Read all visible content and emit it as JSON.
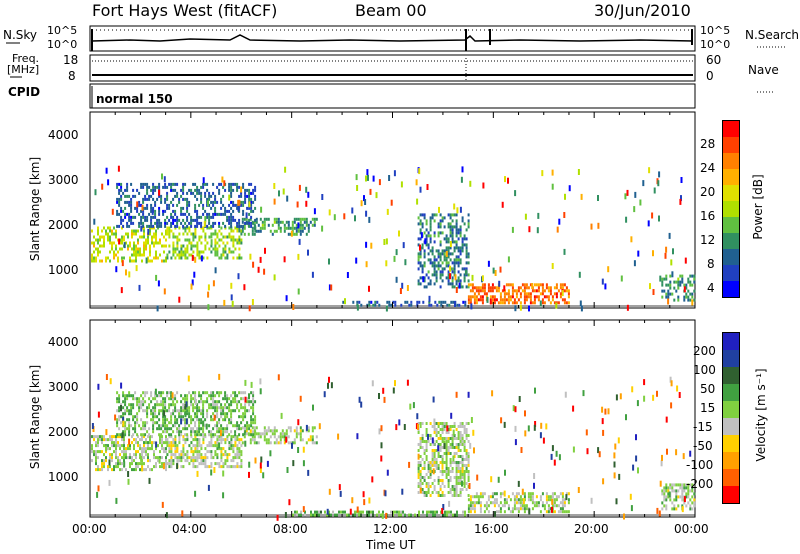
{
  "header": {
    "station": "Fort Hays West (fitACF)",
    "beam": "Beam 00",
    "date": "30/Jun/2010"
  },
  "top_panels": {
    "nsky_label": "N.Sky",
    "nsearch_label": "N.Search",
    "noise_ticks": [
      "10^5",
      "10^0"
    ],
    "noise_right_ticks": [
      "10^5",
      "10^0"
    ],
    "freq_label": "Freq.",
    "freq_unit": "[MHz]",
    "freq_ticks": [
      "18",
      "8"
    ],
    "nave_label": "Nave",
    "nave_ticks": [
      "60",
      "0"
    ],
    "cpid_label": "CPID",
    "cpid_value": "normal 150"
  },
  "axes": {
    "ylabel": "Slant Range [km]",
    "xlabel": "Time UT",
    "y_ticks": [
      "4000",
      "3000",
      "2000",
      "1000"
    ],
    "x_ticks": [
      "00:00",
      "04:00",
      "08:00",
      "12:00",
      "16:00",
      "20:00",
      "00:00"
    ]
  },
  "colorbars": {
    "power": {
      "label": "Power [dB]",
      "ticks": [
        "28",
        "24",
        "20",
        "16",
        "12",
        "8",
        "4"
      ],
      "colors": [
        "#ff0000",
        "#ff4000",
        "#ff8000",
        "#ffb000",
        "#e0e000",
        "#b0e000",
        "#60c040",
        "#309060",
        "#206090",
        "#2040c0",
        "#0000ff"
      ]
    },
    "velocity": {
      "label": "Velocity [m s⁻¹]",
      "ticks": [
        "200",
        "100",
        "50",
        "15",
        "-15",
        "-50",
        "-100",
        "-200"
      ],
      "colors": [
        "#2020c0",
        "#2040a0",
        "#306030",
        "#40a040",
        "#80d040",
        "#c0c0c0",
        "#ffd000",
        "#ffa000",
        "#ff6000",
        "#ff0000"
      ]
    }
  },
  "chart_data": [
    {
      "type": "heatmap",
      "title": "Power",
      "xlabel": "Time UT",
      "ylabel": "Slant Range [km]",
      "xlim": [
        "00:00",
        "24:00"
      ],
      "ylim": [
        180,
        4600
      ],
      "colorbar_label": "Power [dB]",
      "colorbar_range": [
        0,
        30
      ],
      "regions": [
        {
          "t0": 0.0,
          "t1": 3.0,
          "r0": 1200,
          "r1": 2000,
          "value": 16
        },
        {
          "t0": 3.0,
          "t1": 6.0,
          "r0": 1300,
          "r1": 2000,
          "value": 14
        },
        {
          "t0": 6.0,
          "t1": 9.0,
          "r0": 1800,
          "r1": 2200,
          "value": 10
        },
        {
          "t0": 1.0,
          "t1": 6.5,
          "r0": 2000,
          "r1": 3000,
          "value": 6
        },
        {
          "t0": 13.0,
          "t1": 15.0,
          "r0": 600,
          "r1": 2300,
          "value": 8
        },
        {
          "t0": 15.0,
          "t1": 19.0,
          "r0": 250,
          "r1": 700,
          "value": 24
        },
        {
          "t0": 22.7,
          "t1": 24.0,
          "r0": 300,
          "r1": 900,
          "value": 10
        },
        {
          "t0": 10.0,
          "t1": 15.0,
          "r0": 200,
          "r1": 300,
          "value": 6
        }
      ]
    },
    {
      "type": "heatmap",
      "title": "Velocity",
      "xlabel": "Time UT",
      "ylabel": "Slant Range [km]",
      "xlim": [
        "00:00",
        "24:00"
      ],
      "ylim": [
        180,
        4600
      ],
      "colorbar_label": "Velocity [m s⁻¹]",
      "colorbar_range": [
        -200,
        200
      ],
      "regions": [
        {
          "t0": 0.0,
          "t1": 3.0,
          "r0": 1200,
          "r1": 2000,
          "value": 0
        },
        {
          "t0": 3.0,
          "t1": 6.0,
          "r0": 1300,
          "r1": 2000,
          "value": 0
        },
        {
          "t0": 6.0,
          "t1": 9.0,
          "r0": 1800,
          "r1": 2200,
          "value": 0
        },
        {
          "t0": 1.0,
          "t1": 6.5,
          "r0": 2000,
          "r1": 3000,
          "value": 30
        },
        {
          "t0": 13.0,
          "t1": 15.0,
          "r0": 600,
          "r1": 2300,
          "value": 0
        },
        {
          "t0": 15.0,
          "t1": 19.0,
          "r0": 250,
          "r1": 700,
          "value": 0
        },
        {
          "t0": 22.7,
          "t1": 24.0,
          "r0": 300,
          "r1": 900,
          "value": 0
        },
        {
          "t0": 8.0,
          "t1": 15.0,
          "r0": 200,
          "r1": 280,
          "value": 40
        }
      ]
    }
  ]
}
